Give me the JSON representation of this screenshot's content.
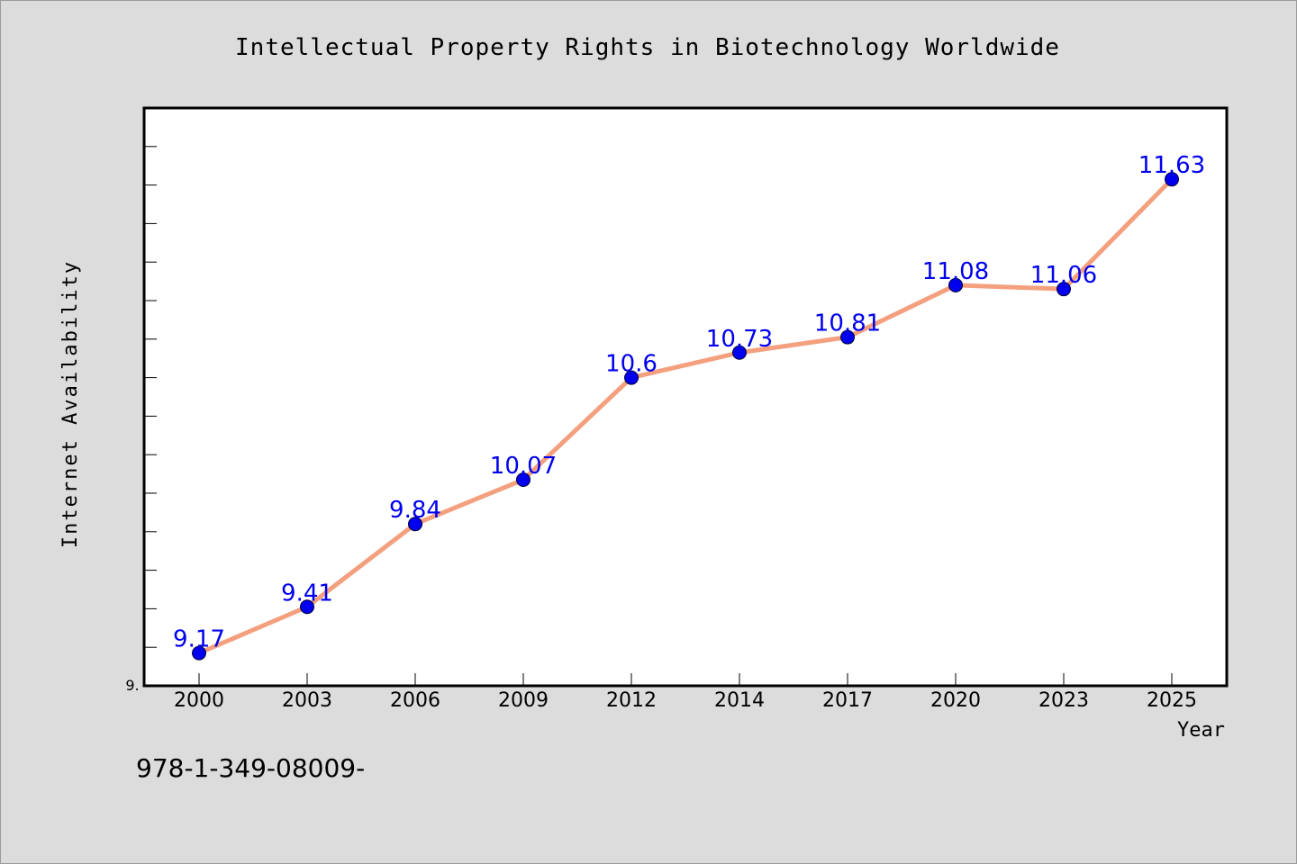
{
  "chart_data": {
    "type": "line",
    "title": "Intellectual Property Rights in Biotechnology Worldwide",
    "xlabel": "Year",
    "ylabel": "Internet Availability",
    "categories": [
      "2000",
      "2003",
      "2006",
      "2009",
      "2012",
      "2014",
      "2017",
      "2020",
      "2023",
      "2025"
    ],
    "values": [
      9.17,
      9.41,
      9.84,
      10.07,
      10.6,
      10.73,
      10.81,
      11.08,
      11.06,
      11.63
    ],
    "data_labels": [
      "9.17",
      "9.41",
      "9.84",
      "10.07",
      "10.6",
      "10.73",
      "10.81",
      "11.08",
      "11.06",
      "11.63"
    ],
    "ylim": [
      9.0,
      12.0
    ],
    "y_tick_label": "9.",
    "grid": false,
    "legend": "none",
    "colors": {
      "line": "#f4a07e",
      "marker": "#0000ee",
      "data_label": "#0000ee",
      "plot_background": "#ffffff",
      "page_background": "#dcdcdc"
    }
  },
  "footer": {
    "isbn_text": "978-1-349-08009-"
  }
}
